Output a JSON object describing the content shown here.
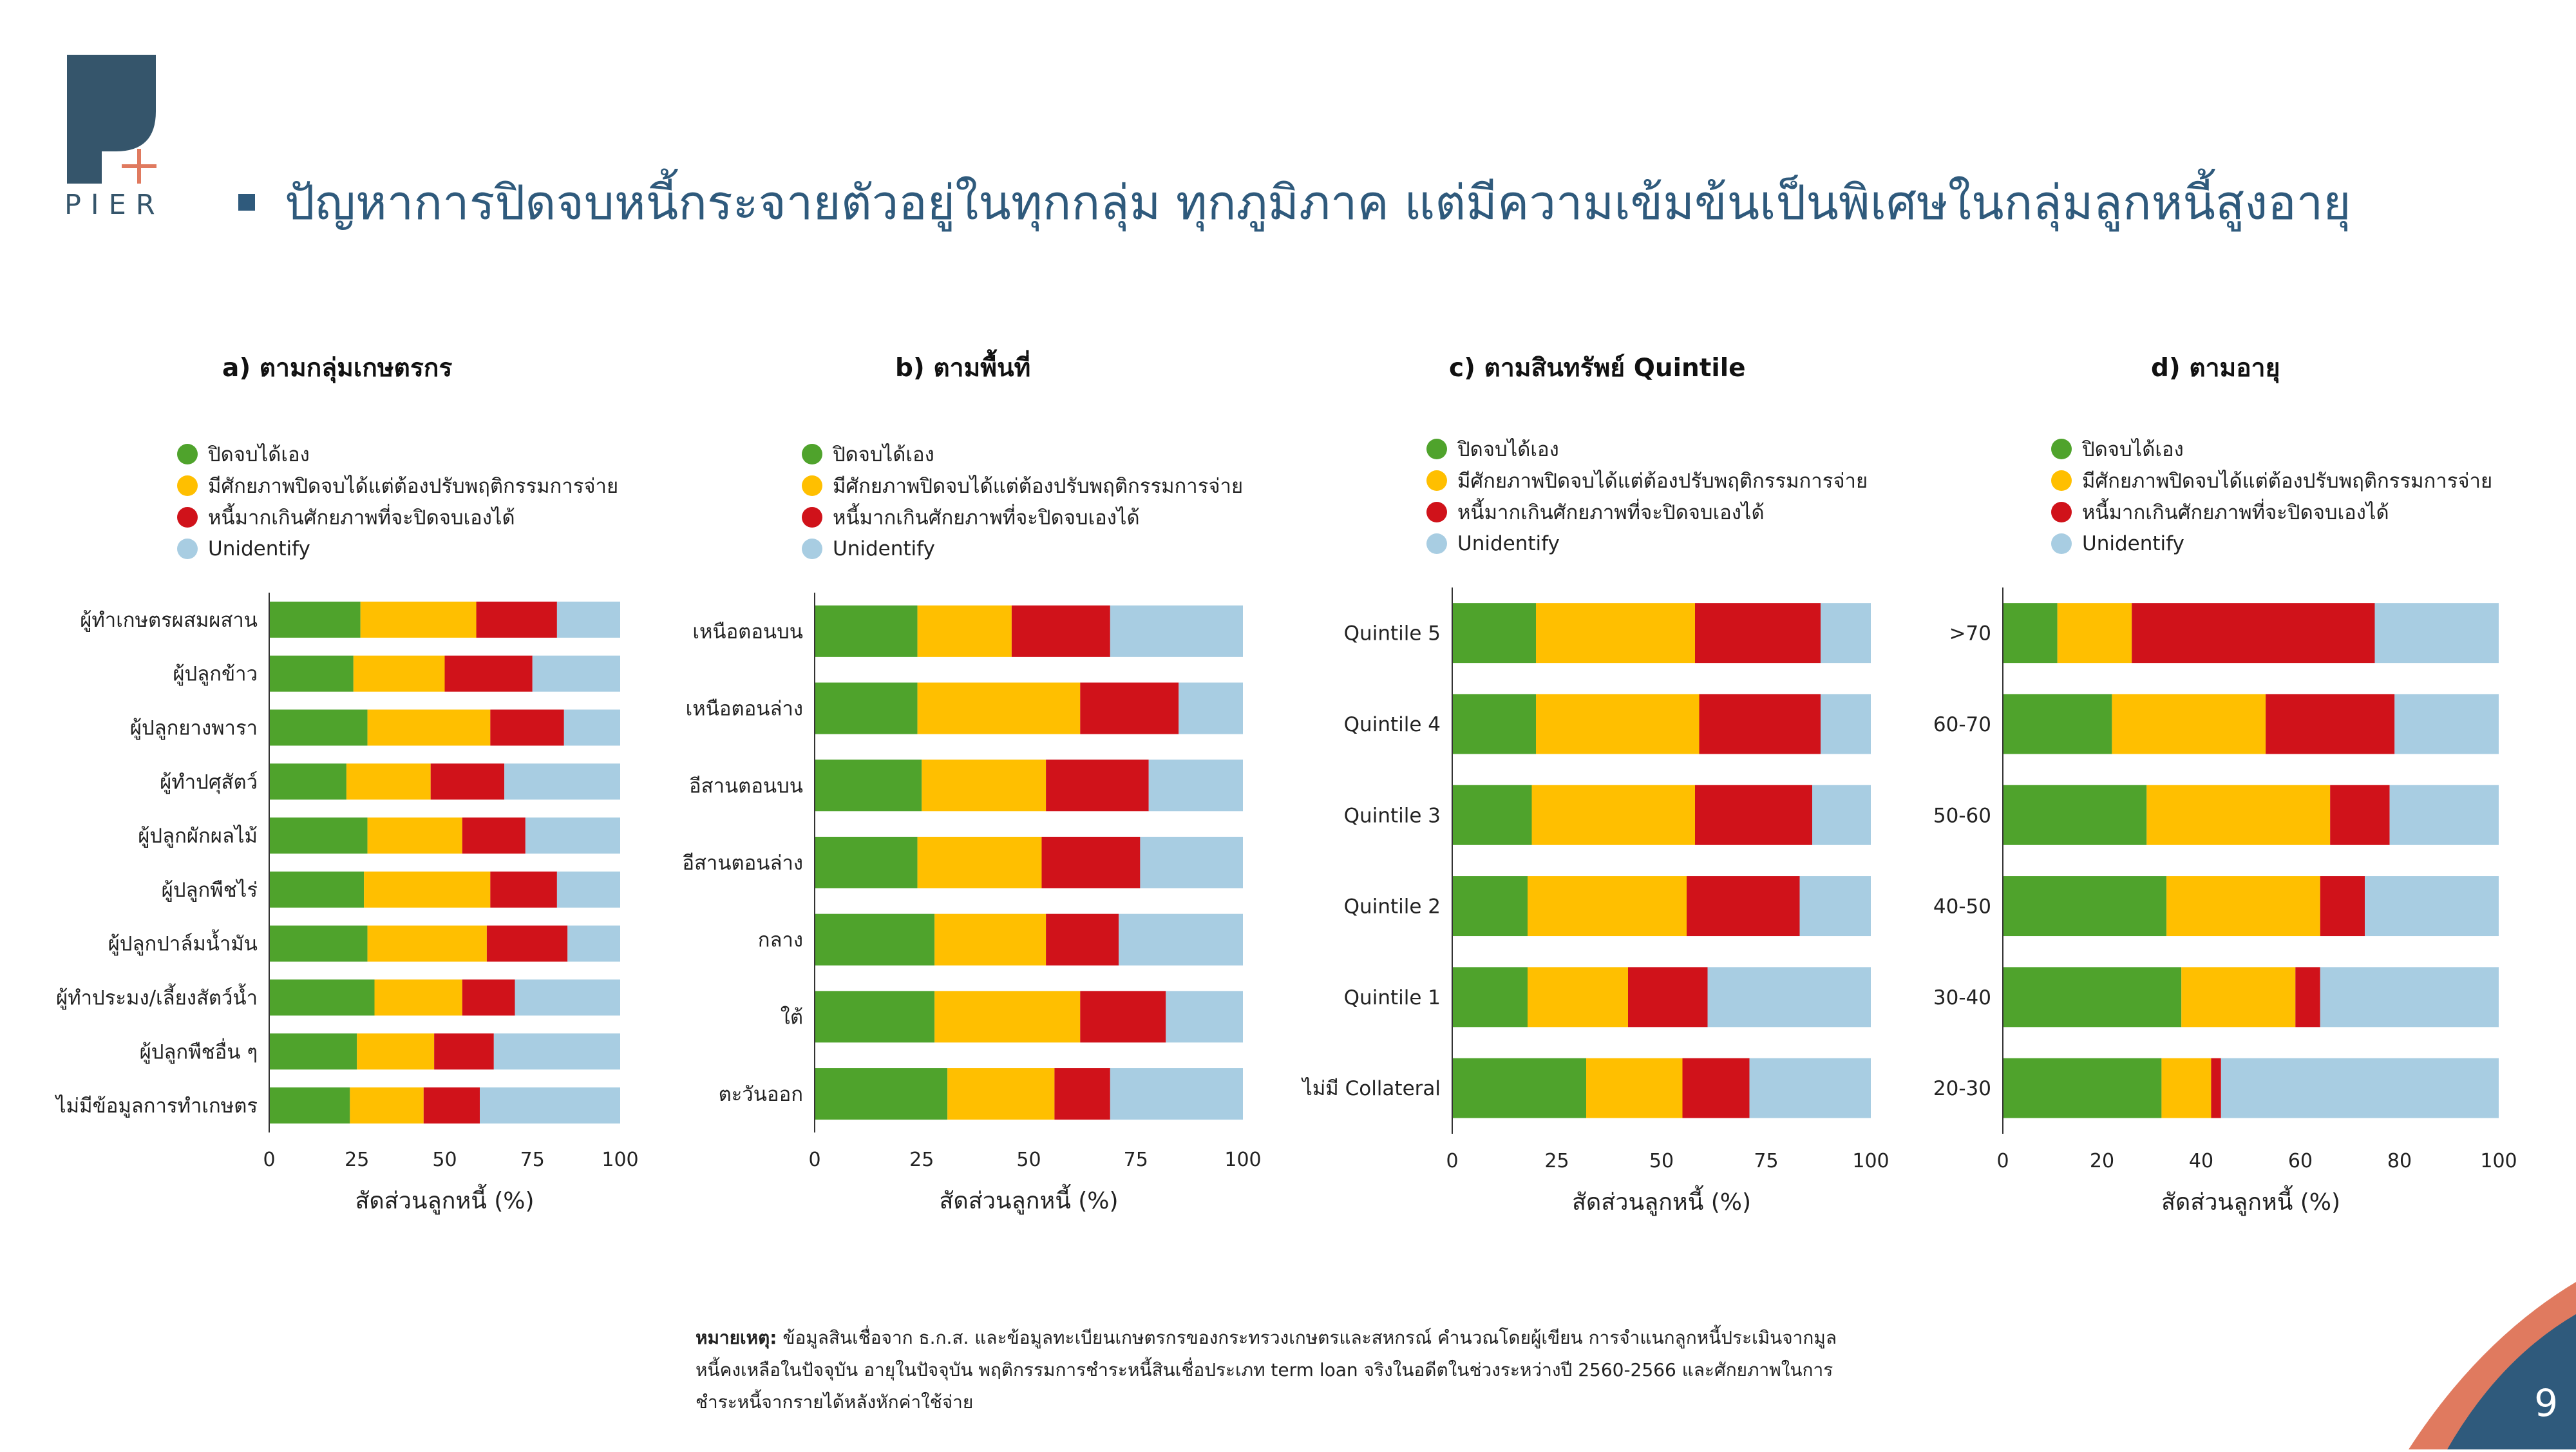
{
  "logo": {
    "text": "PIER"
  },
  "headline": "ปัญหาการปิดจบหนี้กระจายตัวอยู่ในทุกกลุ่ม ทุกภูมิภาค แต่มีความเข้มข้นเป็นพิเศษในกลุ่มลูกหนี้สูงอายุ",
  "colors": {
    "green": "#4fa32c",
    "yellow": "#ffbf00",
    "red": "#d0121a",
    "blue": "#a8cde2",
    "navy": "#2f5a7c"
  },
  "legend": [
    {
      "label": "ปิดจบได้เอง",
      "color": "#4fa32c"
    },
    {
      "label": "มีศักยภาพปิดจบได้แต่ต้องปรับพฤติกรรมการจ่าย",
      "color": "#ffbf00"
    },
    {
      "label": "หนี้มากเกินศักยภาพที่จะปิดจบเองได้",
      "color": "#d0121a"
    },
    {
      "label": "Unidentify",
      "color": "#a8cde2"
    }
  ],
  "chart_data": [
    {
      "type": "bar",
      "title": "a) ตามกลุ่มเกษตรกร",
      "orientation": "horizontal",
      "stacked": true,
      "xlabel": "สัดส่วนลูกหนี้ (%)",
      "xlim": [
        0,
        100
      ],
      "xticks": [
        0,
        25,
        50,
        75,
        100
      ],
      "categories": [
        "ผู้ทำเกษตรผสมผสาน",
        "ผู้ปลูกข้าว",
        "ผู้ปลูกยางพารา",
        "ผู้ทำปศุสัตว์",
        "ผู้ปลูกผักผลไม้",
        "ผู้ปลูกพืชไร่",
        "ผู้ปลูกปาล์มน้ำมัน",
        "ผู้ทำประมง/เลี้ยงสัตว์น้ำ",
        "ผู้ปลูกพืชอื่น ๆ",
        "ไม่มีข้อมูลการทำเกษตร"
      ],
      "series": [
        {
          "name": "ปิดจบได้เอง",
          "values": [
            26,
            24,
            28,
            22,
            28,
            27,
            28,
            30,
            25,
            23
          ]
        },
        {
          "name": "มีศักยภาพปิดจบได้แต่ต้องปรับพฤติกรรมการจ่าย",
          "values": [
            33,
            26,
            35,
            24,
            27,
            36,
            34,
            25,
            22,
            21
          ]
        },
        {
          "name": "หนี้มากเกินศักยภาพที่จะปิดจบเองได้",
          "values": [
            23,
            25,
            21,
            21,
            18,
            19,
            23,
            15,
            17,
            16
          ]
        },
        {
          "name": "Unidentify",
          "values": [
            18,
            25,
            16,
            33,
            27,
            18,
            15,
            30,
            36,
            40
          ]
        }
      ]
    },
    {
      "type": "bar",
      "title": "b) ตามพื้นที่",
      "orientation": "horizontal",
      "stacked": true,
      "xlabel": "สัดส่วนลูกหนี้ (%)",
      "xlim": [
        0,
        100
      ],
      "xticks": [
        0,
        25,
        50,
        75,
        100
      ],
      "categories": [
        "เหนือตอนบน",
        "เหนือตอนล่าง",
        "อีสานตอนบน",
        "อีสานตอนล่าง",
        "กลาง",
        "ใต้",
        "ตะวันออก"
      ],
      "series": [
        {
          "name": "ปิดจบได้เอง",
          "values": [
            24,
            24,
            25,
            24,
            28,
            28,
            31
          ]
        },
        {
          "name": "มีศักยภาพปิดจบได้แต่ต้องปรับพฤติกรรมการจ่าย",
          "values": [
            22,
            38,
            29,
            29,
            26,
            34,
            25
          ]
        },
        {
          "name": "หนี้มากเกินศักยภาพที่จะปิดจบเองได้",
          "values": [
            23,
            23,
            24,
            23,
            17,
            20,
            13
          ]
        },
        {
          "name": "Unidentify",
          "values": [
            31,
            15,
            22,
            24,
            29,
            18,
            31
          ]
        }
      ]
    },
    {
      "type": "bar",
      "title": "c) ตามสินทรัพย์ Quintile",
      "orientation": "horizontal",
      "stacked": true,
      "xlabel": "สัดส่วนลูกหนี้ (%)",
      "xlim": [
        0,
        100
      ],
      "xticks": [
        0,
        25,
        50,
        75,
        100
      ],
      "categories": [
        "Quintile 5",
        "Quintile 4",
        "Quintile 3",
        "Quintile 2",
        "Quintile 1",
        "ไม่มี Collateral"
      ],
      "series": [
        {
          "name": "ปิดจบได้เอง",
          "values": [
            20,
            20,
            19,
            18,
            18,
            32
          ]
        },
        {
          "name": "มีศักยภาพปิดจบได้แต่ต้องปรับพฤติกรรมการจ่าย",
          "values": [
            38,
            39,
            39,
            38,
            24,
            23
          ]
        },
        {
          "name": "หนี้มากเกินศักยภาพที่จะปิดจบเองได้",
          "values": [
            30,
            29,
            28,
            27,
            19,
            16
          ]
        },
        {
          "name": "Unidentify",
          "values": [
            12,
            12,
            14,
            17,
            39,
            29
          ]
        }
      ]
    },
    {
      "type": "bar",
      "title": "d) ตามอายุ",
      "orientation": "horizontal",
      "stacked": true,
      "xlabel": "สัดส่วนลูกหนี้ (%)",
      "xlim": [
        0,
        100
      ],
      "xticks": [
        0,
        20,
        40,
        60,
        80,
        100
      ],
      "categories": [
        ">70",
        "60-70",
        "50-60",
        "40-50",
        "30-40",
        "20-30"
      ],
      "series": [
        {
          "name": "ปิดจบได้เอง",
          "values": [
            11,
            22,
            29,
            33,
            36,
            32
          ]
        },
        {
          "name": "มีศักยภาพปิดจบได้แต่ต้องปรับพฤติกรรมการจ่าย",
          "values": [
            15,
            31,
            37,
            31,
            23,
            10
          ]
        },
        {
          "name": "หนี้มากเกินศักยภาพที่จะปิดจบเองได้",
          "values": [
            49,
            26,
            12,
            9,
            5,
            2
          ]
        },
        {
          "name": "Unidentify",
          "values": [
            25,
            21,
            22,
            27,
            36,
            56
          ]
        }
      ]
    }
  ],
  "note": {
    "label": "หมายเหตุ:",
    "text": " ข้อมูลสินเชื่อจาก ธ.ก.ส. และข้อมูลทะเบียนเกษตรกรของกระทรวงเกษตรและสหกรณ์ คำนวณโดยผู้เขียน การจำแนกลูกหนี้ประเมินจากมูลหนี้คงเหลือในปัจจุบัน อายุในปัจจุบัน พฤติกรรมการชำระหนี้สินเชื่อประเภท term loan จริงในอดีตในช่วงระหว่างปี 2560-2566 และศักยภาพในการชำระหนี้จากรายได้หลังหักค่าใช้จ่าย"
  },
  "page_number": "9"
}
